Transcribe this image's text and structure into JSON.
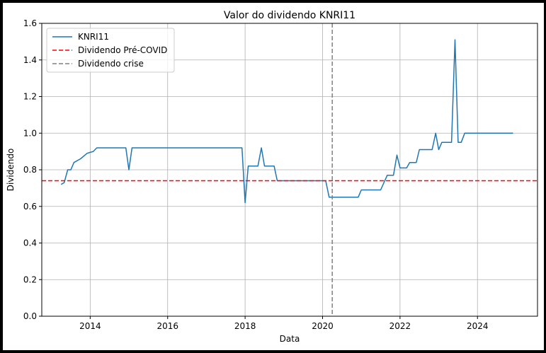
{
  "chart_data": {
    "type": "line",
    "title": "Valor do dividendo KNRI11",
    "xlabel": "Data",
    "ylabel": "Dividendo",
    "xlim": [
      2012.75,
      2025.55
    ],
    "ylim": [
      0.0,
      1.6
    ],
    "xticks": [
      2014,
      2016,
      2018,
      2020,
      2022,
      2024
    ],
    "xtick_labels": [
      "2014",
      "2016",
      "2018",
      "2020",
      "2022",
      "2024"
    ],
    "yticks": [
      0.0,
      0.2,
      0.4,
      0.6,
      0.8,
      1.0,
      1.2,
      1.4,
      1.6
    ],
    "ytick_labels": [
      "0.0",
      "0.2",
      "0.4",
      "0.6",
      "0.8",
      "1.0",
      "1.2",
      "1.4",
      "1.6"
    ],
    "grid": true,
    "legend": {
      "position": "top-left",
      "entries": [
        "KNRI11",
        "Dividendo Pré-COVID",
        "Dividendo crise"
      ]
    },
    "series": [
      {
        "name": "KNRI11",
        "color": "#1f77b4",
        "points": [
          [
            2013.25,
            0.72
          ],
          [
            2013.33,
            0.73
          ],
          [
            2013.42,
            0.8
          ],
          [
            2013.5,
            0.8
          ],
          [
            2013.58,
            0.84
          ],
          [
            2013.75,
            0.86
          ],
          [
            2013.92,
            0.89
          ],
          [
            2014.08,
            0.9
          ],
          [
            2014.17,
            0.92
          ],
          [
            2014.92,
            0.92
          ],
          [
            2015.0,
            0.8
          ],
          [
            2015.08,
            0.92
          ],
          [
            2017.92,
            0.92
          ],
          [
            2018.0,
            0.62
          ],
          [
            2018.08,
            0.82
          ],
          [
            2018.33,
            0.82
          ],
          [
            2018.42,
            0.92
          ],
          [
            2018.5,
            0.82
          ],
          [
            2018.75,
            0.82
          ],
          [
            2018.83,
            0.74
          ],
          [
            2020.08,
            0.74
          ],
          [
            2020.17,
            0.65
          ],
          [
            2020.92,
            0.65
          ],
          [
            2021.0,
            0.69
          ],
          [
            2021.5,
            0.69
          ],
          [
            2021.67,
            0.77
          ],
          [
            2021.83,
            0.77
          ],
          [
            2021.92,
            0.88
          ],
          [
            2022.0,
            0.81
          ],
          [
            2022.17,
            0.81
          ],
          [
            2022.25,
            0.84
          ],
          [
            2022.42,
            0.84
          ],
          [
            2022.5,
            0.91
          ],
          [
            2022.83,
            0.91
          ],
          [
            2022.92,
            1.0
          ],
          [
            2023.0,
            0.91
          ],
          [
            2023.08,
            0.95
          ],
          [
            2023.33,
            0.95
          ],
          [
            2023.42,
            1.51
          ],
          [
            2023.5,
            0.95
          ],
          [
            2023.58,
            0.95
          ],
          [
            2023.67,
            1.0
          ],
          [
            2024.92,
            1.0
          ]
        ]
      },
      {
        "name": "Dividendo Pré-COVID",
        "color": "#ff0000",
        "kind": "horizontal",
        "y": 0.74
      },
      {
        "name": "Dividendo crise",
        "color": "#808080",
        "kind": "vertical",
        "x": 2020.25
      }
    ]
  }
}
